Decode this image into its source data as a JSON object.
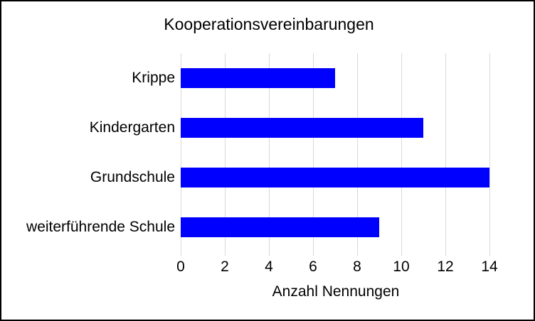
{
  "window": {
    "background": "#FFFFFF",
    "border_color": "#000000"
  },
  "chart_data": {
    "type": "bar",
    "orientation": "horizontal",
    "title": "Kooperationsvereinbarungen",
    "xlabel": "Anzahl Nennungen",
    "ylabel": "",
    "categories": [
      "Krippe",
      "Kindergarten",
      "Grundschule",
      "weiterführende Schule"
    ],
    "values": [
      7,
      11,
      14,
      9
    ],
    "xlim": [
      0,
      14.5
    ],
    "xticks": [
      0,
      2,
      4,
      6,
      8,
      10,
      12,
      14
    ],
    "grid": true,
    "legend": false,
    "bar_color": "#0000FF",
    "gridline_color": "#D9D9D9",
    "text_color": "#000000"
  }
}
